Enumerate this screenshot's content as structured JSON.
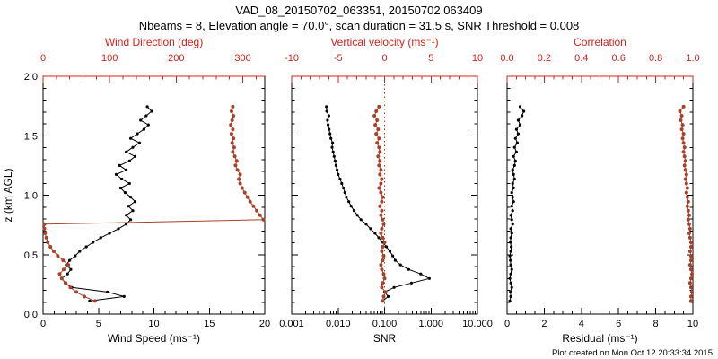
{
  "header": {
    "title": "VAD_08_20150702_063351, 20150702.063409",
    "subtitle": "Nbeams = 8, Elevation angle = 70.0°, scan duration = 31.5 s, SNR Threshold = 0.008"
  },
  "footer": {
    "created": "Plot created on Mon Oct 12 20:33:34 2015"
  },
  "colors": {
    "black": "#000000",
    "red": "#cf241c",
    "point_red": "#a8402a"
  },
  "chart_data": [
    {
      "type": "scatter",
      "name": "wind",
      "y_axis": {
        "label": "z (km AGL)",
        "min": 0,
        "max": 2,
        "ticks": [
          0,
          0.5,
          1,
          1.5,
          2
        ],
        "tick_labels": [
          "0.0",
          "0.5",
          "1.0",
          "1.5",
          "2.0"
        ],
        "show_labels": true
      },
      "bottom_axis": {
        "label": "Wind Speed (ms⁻¹)",
        "scale": "linear",
        "min": 0,
        "max": 20,
        "minor_step": 1,
        "ticks": [
          0,
          5,
          10,
          15,
          20
        ],
        "tick_labels": [
          "0",
          "5",
          "10",
          "15",
          "20"
        ]
      },
      "top_axis": {
        "label": "Wind Direction (deg)",
        "scale": "linear",
        "min": 0,
        "max": 333,
        "minor_step": 20,
        "ticks": [
          0,
          100,
          200,
          300
        ],
        "tick_labels": [
          "0",
          "100",
          "200",
          "300"
        ]
      },
      "series": [
        {
          "name": "wind-speed",
          "axis": "bottom",
          "color": "black",
          "line": true,
          "z": [
            0.11,
            0.148,
            0.186,
            0.224,
            0.262,
            0.3,
            0.338,
            0.376,
            0.414,
            0.452,
            0.49,
            0.528,
            0.566,
            0.604,
            0.642,
            0.68,
            0.718,
            0.756,
            0.794,
            0.832,
            0.87,
            0.908,
            0.946,
            0.984,
            1.022,
            1.06,
            1.098,
            1.136,
            1.174,
            1.212,
            1.25,
            1.288,
            1.326,
            1.364,
            1.402,
            1.44,
            1.478,
            1.516,
            1.554,
            1.592,
            1.63,
            1.668,
            1.706,
            1.744
          ],
          "v": [
            4.2,
            7.3,
            5.8,
            2.6,
            2.0,
            1.7,
            2.2,
            2.5,
            2.1,
            2.4,
            2.9,
            3.3,
            3.9,
            4.5,
            5.2,
            6.0,
            6.8,
            7.5,
            7.9,
            7.5,
            8.1,
            7.7,
            8.3,
            7.9,
            7.4,
            7.0,
            7.8,
            7.1,
            6.6,
            7.5,
            6.9,
            7.8,
            8.3,
            7.5,
            8.1,
            8.7,
            7.9,
            8.5,
            9.1,
            9.5,
            8.8,
            9.3,
            9.8,
            9.4
          ]
        },
        {
          "name": "wind-direction",
          "axis": "top",
          "color": "red",
          "line": true,
          "z": [
            0.11,
            0.148,
            0.186,
            0.224,
            0.262,
            0.3,
            0.338,
            0.376,
            0.414,
            0.452,
            0.49,
            0.528,
            0.566,
            0.604,
            0.642,
            0.68,
            0.718,
            0.756,
            0.794,
            0.832,
            0.87,
            0.908,
            0.946,
            0.984,
            1.022,
            1.06,
            1.098,
            1.136,
            1.174,
            1.212,
            1.25,
            1.288,
            1.326,
            1.364,
            1.402,
            1.44,
            1.478,
            1.516,
            1.554,
            1.592,
            1.63,
            1.668,
            1.706,
            1.744
          ],
          "v": [
            78,
            62,
            50,
            41,
            34,
            28,
            25,
            31,
            38,
            30,
            22,
            16,
            11,
            7,
            5,
            3,
            2,
            2,
            331,
            326,
            321,
            316,
            311,
            307,
            303,
            299,
            296,
            294,
            296,
            292,
            289,
            291,
            288,
            285,
            287,
            284,
            286,
            283,
            285,
            282,
            284,
            286,
            283,
            285
          ]
        }
      ]
    },
    {
      "type": "scatter",
      "name": "snr",
      "y_axis": {
        "label": "",
        "min": 0,
        "max": 2,
        "ticks": [
          0,
          0.5,
          1,
          1.5,
          2
        ],
        "tick_labels": [],
        "show_labels": false
      },
      "bottom_axis": {
        "label": "SNR",
        "scale": "log",
        "min": 0.001,
        "max": 10,
        "ticks": [
          0.001,
          0.01,
          0.1,
          1,
          10
        ],
        "tick_labels": [
          "0.001",
          "0.010",
          "0.100",
          "1.000",
          "10.000"
        ]
      },
      "top_axis": {
        "label": "Vertical velocity (ms⁻¹)",
        "scale": "linear",
        "min": -10,
        "max": 10,
        "minor_step": 1,
        "ticks": [
          -10,
          -5,
          0,
          5,
          10
        ],
        "tick_labels": [
          "-10",
          "-5",
          "0",
          "5",
          "10"
        ]
      },
      "refline": {
        "axis": "top",
        "value": 0,
        "style": "dotted",
        "color": "red"
      },
      "series": [
        {
          "name": "snr",
          "axis": "bottom",
          "color": "black",
          "line": true,
          "z": [
            0.11,
            0.148,
            0.186,
            0.224,
            0.262,
            0.3,
            0.338,
            0.376,
            0.414,
            0.452,
            0.49,
            0.528,
            0.566,
            0.604,
            0.642,
            0.68,
            0.718,
            0.756,
            0.794,
            0.832,
            0.87,
            0.908,
            0.946,
            0.984,
            1.022,
            1.06,
            1.098,
            1.136,
            1.174,
            1.212,
            1.25,
            1.288,
            1.326,
            1.364,
            1.402,
            1.44,
            1.478,
            1.516,
            1.554,
            1.592,
            1.63,
            1.668,
            1.706,
            1.744
          ],
          "v": [
            0.09,
            0.12,
            0.1,
            0.16,
            0.38,
            0.92,
            0.6,
            0.33,
            0.22,
            0.17,
            0.15,
            0.13,
            0.11,
            0.092,
            0.075,
            0.062,
            0.05,
            0.04,
            0.031,
            0.026,
            0.022,
            0.019,
            0.017,
            0.015,
            0.014,
            0.013,
            0.012,
            0.011,
            0.01,
            0.0095,
            0.009,
            0.0086,
            0.0082,
            0.0078,
            0.0074,
            0.0076,
            0.007,
            0.0067,
            0.0064,
            0.0061,
            0.0059,
            0.0063,
            0.0057,
            0.0056
          ]
        },
        {
          "name": "vertical-velocity",
          "axis": "top",
          "color": "red",
          "line": true,
          "z": [
            0.11,
            0.148,
            0.186,
            0.224,
            0.262,
            0.3,
            0.338,
            0.376,
            0.414,
            0.452,
            0.49,
            0.528,
            0.566,
            0.604,
            0.642,
            0.68,
            0.718,
            0.756,
            0.794,
            0.832,
            0.87,
            0.908,
            0.946,
            0.984,
            1.022,
            1.06,
            1.098,
            1.136,
            1.174,
            1.212,
            1.25,
            1.288,
            1.326,
            1.364,
            1.402,
            1.44,
            1.478,
            1.516,
            1.554,
            1.592,
            1.63,
            1.668,
            1.706,
            1.744
          ],
          "v": [
            -0.2,
            -0.1,
            0.1,
            -0.3,
            -0.2,
            0.0,
            -0.1,
            -0.3,
            -0.4,
            -0.2,
            -0.1,
            -0.3,
            -0.2,
            0.0,
            -0.2,
            -0.4,
            -0.3,
            -0.1,
            -0.2,
            -0.4,
            -0.3,
            -0.5,
            -0.3,
            -0.2,
            -0.4,
            -0.6,
            -0.4,
            -0.3,
            -0.5,
            -0.4,
            -0.6,
            -0.5,
            -0.7,
            -0.5,
            -0.6,
            -0.8,
            -0.6,
            -0.9,
            -0.7,
            -1.0,
            -0.8,
            -1.1,
            -0.9,
            -0.6
          ]
        }
      ]
    },
    {
      "type": "scatter",
      "name": "residual",
      "y_axis": {
        "label": "",
        "min": 0,
        "max": 2,
        "ticks": [
          0,
          0.5,
          1,
          1.5,
          2
        ],
        "tick_labels": [],
        "show_labels": false
      },
      "bottom_axis": {
        "label": "Residual (ms⁻¹)",
        "scale": "linear",
        "min": 0,
        "max": 10,
        "minor_step": 0.5,
        "ticks": [
          0,
          2,
          4,
          6,
          8,
          10
        ],
        "tick_labels": [
          "0",
          "2",
          "4",
          "6",
          "8",
          "10"
        ]
      },
      "top_axis": {
        "label": "Correlation",
        "scale": "linear",
        "min": 0,
        "max": 1,
        "minor_step": 0.05,
        "ticks": [
          0,
          0.2,
          0.4,
          0.6,
          0.8,
          1
        ],
        "tick_labels": [
          "0.0",
          "0.2",
          "0.4",
          "0.6",
          "0.8",
          "1.0"
        ]
      },
      "series": [
        {
          "name": "residual",
          "axis": "bottom",
          "color": "black",
          "line": true,
          "z": [
            0.11,
            0.148,
            0.186,
            0.224,
            0.262,
            0.3,
            0.338,
            0.376,
            0.414,
            0.452,
            0.49,
            0.528,
            0.566,
            0.604,
            0.642,
            0.68,
            0.718,
            0.756,
            0.794,
            0.832,
            0.87,
            0.908,
            0.946,
            0.984,
            1.022,
            1.06,
            1.098,
            1.136,
            1.174,
            1.212,
            1.25,
            1.288,
            1.326,
            1.364,
            1.402,
            1.44,
            1.478,
            1.516,
            1.554,
            1.592,
            1.63,
            1.668,
            1.706,
            1.744
          ],
          "v": [
            0.15,
            0.2,
            0.18,
            0.25,
            0.2,
            0.15,
            0.2,
            0.25,
            0.2,
            0.18,
            0.15,
            0.2,
            0.22,
            0.18,
            0.2,
            0.25,
            0.2,
            0.3,
            0.25,
            0.2,
            0.3,
            0.25,
            0.35,
            0.3,
            0.25,
            0.35,
            0.3,
            0.4,
            0.35,
            0.3,
            0.4,
            0.45,
            0.35,
            0.5,
            0.4,
            0.55,
            0.45,
            0.6,
            0.5,
            0.7,
            0.6,
            0.8,
            0.9,
            0.7
          ]
        },
        {
          "name": "correlation",
          "axis": "top",
          "color": "red",
          "line": true,
          "z": [
            0.11,
            0.148,
            0.186,
            0.224,
            0.262,
            0.3,
            0.338,
            0.376,
            0.414,
            0.452,
            0.49,
            0.528,
            0.566,
            0.604,
            0.642,
            0.68,
            0.718,
            0.756,
            0.794,
            0.832,
            0.87,
            0.908,
            0.946,
            0.984,
            1.022,
            1.06,
            1.098,
            1.136,
            1.174,
            1.212,
            1.25,
            1.288,
            1.326,
            1.364,
            1.402,
            1.44,
            1.478,
            1.516,
            1.554,
            1.592,
            1.63,
            1.668,
            1.706,
            1.744
          ],
          "v": [
            0.99,
            0.99,
            0.995,
            0.99,
            0.985,
            0.99,
            0.995,
            0.99,
            0.985,
            0.99,
            0.99,
            0.985,
            0.99,
            0.99,
            0.985,
            0.98,
            0.985,
            0.98,
            0.975,
            0.98,
            0.975,
            0.97,
            0.975,
            0.97,
            0.965,
            0.97,
            0.965,
            0.96,
            0.965,
            0.96,
            0.955,
            0.96,
            0.955,
            0.95,
            0.955,
            0.95,
            0.945,
            0.95,
            0.94,
            0.945,
            0.935,
            0.94,
            0.93,
            0.95
          ]
        }
      ]
    }
  ]
}
